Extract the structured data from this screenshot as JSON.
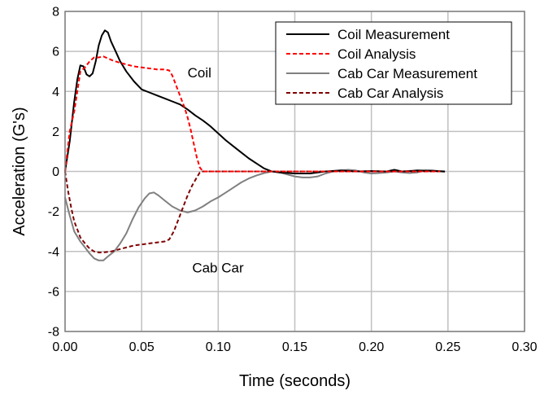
{
  "chart_data": {
    "type": "line",
    "xlabel": "Time (seconds)",
    "ylabel": "Acceleration (G's)",
    "xlim": [
      0,
      0.3
    ],
    "ylim": [
      -8,
      8
    ],
    "x_ticks": [
      0,
      0.05,
      0.1,
      0.15,
      0.2,
      0.25,
      0.3
    ],
    "x_tick_labels": [
      "0.00",
      "0.05",
      "0.10",
      "0.15",
      "0.20",
      "0.25",
      "0.30"
    ],
    "y_ticks": [
      -8,
      -6,
      -4,
      -2,
      0,
      2,
      4,
      6,
      8
    ],
    "y_tick_labels": [
      "-8",
      "-6",
      "-4",
      "-2",
      "0",
      "2",
      "4",
      "6",
      "8"
    ],
    "grid": true,
    "legend_position": "top-right",
    "annotations": [
      {
        "text": "Coil",
        "x": 0.08,
        "y": 4.7
      },
      {
        "text": "Cab Car",
        "x": 0.083,
        "y": -5.05
      }
    ],
    "series": [
      {
        "name": "Coil Measurement",
        "color": "#000000",
        "style": "solid",
        "points": [
          [
            0,
            0
          ],
          [
            0.003,
            1.5
          ],
          [
            0.006,
            3.5
          ],
          [
            0.008,
            4.6
          ],
          [
            0.01,
            5.3
          ],
          [
            0.012,
            5.25
          ],
          [
            0.014,
            4.85
          ],
          [
            0.016,
            4.75
          ],
          [
            0.018,
            4.9
          ],
          [
            0.02,
            5.5
          ],
          [
            0.022,
            6.3
          ],
          [
            0.024,
            6.8
          ],
          [
            0.026,
            7.05
          ],
          [
            0.028,
            6.95
          ],
          [
            0.03,
            6.5
          ],
          [
            0.033,
            6.0
          ],
          [
            0.036,
            5.5
          ],
          [
            0.04,
            5.0
          ],
          [
            0.045,
            4.5
          ],
          [
            0.05,
            4.1
          ],
          [
            0.055,
            3.95
          ],
          [
            0.06,
            3.8
          ],
          [
            0.065,
            3.65
          ],
          [
            0.07,
            3.5
          ],
          [
            0.075,
            3.35
          ],
          [
            0.08,
            3.1
          ],
          [
            0.085,
            2.8
          ],
          [
            0.09,
            2.55
          ],
          [
            0.095,
            2.25
          ],
          [
            0.1,
            1.9
          ],
          [
            0.105,
            1.55
          ],
          [
            0.11,
            1.25
          ],
          [
            0.115,
            0.95
          ],
          [
            0.12,
            0.65
          ],
          [
            0.125,
            0.4
          ],
          [
            0.13,
            0.15
          ],
          [
            0.135,
            0.0
          ],
          [
            0.14,
            -0.05
          ],
          [
            0.15,
            -0.1
          ],
          [
            0.16,
            -0.1
          ],
          [
            0.17,
            0.0
          ],
          [
            0.18,
            0.05
          ],
          [
            0.19,
            0.0
          ],
          [
            0.2,
            0.02
          ],
          [
            0.21,
            0.0
          ],
          [
            0.215,
            0.08
          ],
          [
            0.22,
            0.0
          ],
          [
            0.23,
            0.05
          ],
          [
            0.24,
            0.03
          ],
          [
            0.248,
            0.0
          ]
        ]
      },
      {
        "name": "Coil Analysis",
        "color": "#ff0000",
        "style": "dashed",
        "points": [
          [
            0,
            0
          ],
          [
            0.003,
            2.0
          ],
          [
            0.006,
            3.0
          ],
          [
            0.008,
            4.0
          ],
          [
            0.01,
            5.0
          ],
          [
            0.013,
            5.2
          ],
          [
            0.016,
            5.5
          ],
          [
            0.019,
            5.7
          ],
          [
            0.022,
            5.7
          ],
          [
            0.025,
            5.75
          ],
          [
            0.028,
            5.65
          ],
          [
            0.031,
            5.55
          ],
          [
            0.035,
            5.45
          ],
          [
            0.04,
            5.35
          ],
          [
            0.045,
            5.25
          ],
          [
            0.05,
            5.2
          ],
          [
            0.055,
            5.15
          ],
          [
            0.06,
            5.1
          ],
          [
            0.065,
            5.1
          ],
          [
            0.068,
            5.05
          ],
          [
            0.07,
            4.8
          ],
          [
            0.072,
            4.4
          ],
          [
            0.074,
            4.0
          ],
          [
            0.076,
            3.6
          ],
          [
            0.078,
            3.2
          ],
          [
            0.08,
            2.7
          ],
          [
            0.082,
            2.1
          ],
          [
            0.084,
            1.4
          ],
          [
            0.086,
            0.7
          ],
          [
            0.088,
            0.2
          ],
          [
            0.09,
            0.0
          ],
          [
            0.1,
            0.0
          ],
          [
            0.15,
            0.0
          ],
          [
            0.2,
            0.0
          ],
          [
            0.245,
            0.0
          ]
        ]
      },
      {
        "name": "Cab Car Measurement",
        "color": "#808080",
        "style": "solid",
        "points": [
          [
            0,
            -1.3
          ],
          [
            0.003,
            -2.2
          ],
          [
            0.006,
            -3.0
          ],
          [
            0.01,
            -3.5
          ],
          [
            0.013,
            -3.8
          ],
          [
            0.016,
            -4.1
          ],
          [
            0.019,
            -4.35
          ],
          [
            0.022,
            -4.45
          ],
          [
            0.025,
            -4.45
          ],
          [
            0.028,
            -4.25
          ],
          [
            0.032,
            -4.0
          ],
          [
            0.036,
            -3.6
          ],
          [
            0.04,
            -3.1
          ],
          [
            0.044,
            -2.4
          ],
          [
            0.048,
            -1.8
          ],
          [
            0.052,
            -1.35
          ],
          [
            0.055,
            -1.1
          ],
          [
            0.058,
            -1.05
          ],
          [
            0.061,
            -1.2
          ],
          [
            0.065,
            -1.45
          ],
          [
            0.07,
            -1.75
          ],
          [
            0.075,
            -1.95
          ],
          [
            0.08,
            -2.05
          ],
          [
            0.085,
            -1.95
          ],
          [
            0.09,
            -1.75
          ],
          [
            0.095,
            -1.5
          ],
          [
            0.1,
            -1.3
          ],
          [
            0.105,
            -1.05
          ],
          [
            0.11,
            -0.8
          ],
          [
            0.115,
            -0.55
          ],
          [
            0.12,
            -0.35
          ],
          [
            0.125,
            -0.2
          ],
          [
            0.13,
            -0.08
          ],
          [
            0.135,
            0.0
          ],
          [
            0.14,
            -0.05
          ],
          [
            0.145,
            -0.15
          ],
          [
            0.15,
            -0.25
          ],
          [
            0.155,
            -0.3
          ],
          [
            0.16,
            -0.3
          ],
          [
            0.165,
            -0.25
          ],
          [
            0.17,
            -0.1
          ],
          [
            0.175,
            0.0
          ],
          [
            0.18,
            0.05
          ],
          [
            0.185,
            0.08
          ],
          [
            0.19,
            0.05
          ],
          [
            0.195,
            -0.05
          ],
          [
            0.2,
            -0.1
          ],
          [
            0.205,
            -0.08
          ],
          [
            0.21,
            -0.05
          ],
          [
            0.215,
            0.0
          ],
          [
            0.22,
            -0.05
          ],
          [
            0.225,
            -0.08
          ],
          [
            0.23,
            -0.05
          ],
          [
            0.235,
            0.05
          ],
          [
            0.24,
            0.05
          ],
          [
            0.245,
            0.0
          ],
          [
            0.248,
            -0.02
          ]
        ]
      },
      {
        "name": "Cab Car Analysis",
        "color": "#800000",
        "style": "dashed",
        "points": [
          [
            0,
            0
          ],
          [
            0.002,
            -1.0
          ],
          [
            0.004,
            -1.8
          ],
          [
            0.006,
            -2.5
          ],
          [
            0.008,
            -2.9
          ],
          [
            0.01,
            -3.3
          ],
          [
            0.013,
            -3.6
          ],
          [
            0.016,
            -3.85
          ],
          [
            0.019,
            -4.0
          ],
          [
            0.022,
            -4.05
          ],
          [
            0.025,
            -4.05
          ],
          [
            0.03,
            -4.0
          ],
          [
            0.035,
            -3.9
          ],
          [
            0.04,
            -3.8
          ],
          [
            0.045,
            -3.7
          ],
          [
            0.05,
            -3.65
          ],
          [
            0.055,
            -3.6
          ],
          [
            0.06,
            -3.55
          ],
          [
            0.065,
            -3.5
          ],
          [
            0.068,
            -3.4
          ],
          [
            0.071,
            -3.0
          ],
          [
            0.074,
            -2.4
          ],
          [
            0.077,
            -1.8
          ],
          [
            0.08,
            -1.2
          ],
          [
            0.083,
            -0.7
          ],
          [
            0.086,
            -0.3
          ],
          [
            0.088,
            -0.05
          ],
          [
            0.09,
            0.0
          ],
          [
            0.1,
            0.0
          ],
          [
            0.15,
            0.0
          ],
          [
            0.2,
            0.0
          ],
          [
            0.245,
            0.0
          ]
        ]
      }
    ]
  }
}
